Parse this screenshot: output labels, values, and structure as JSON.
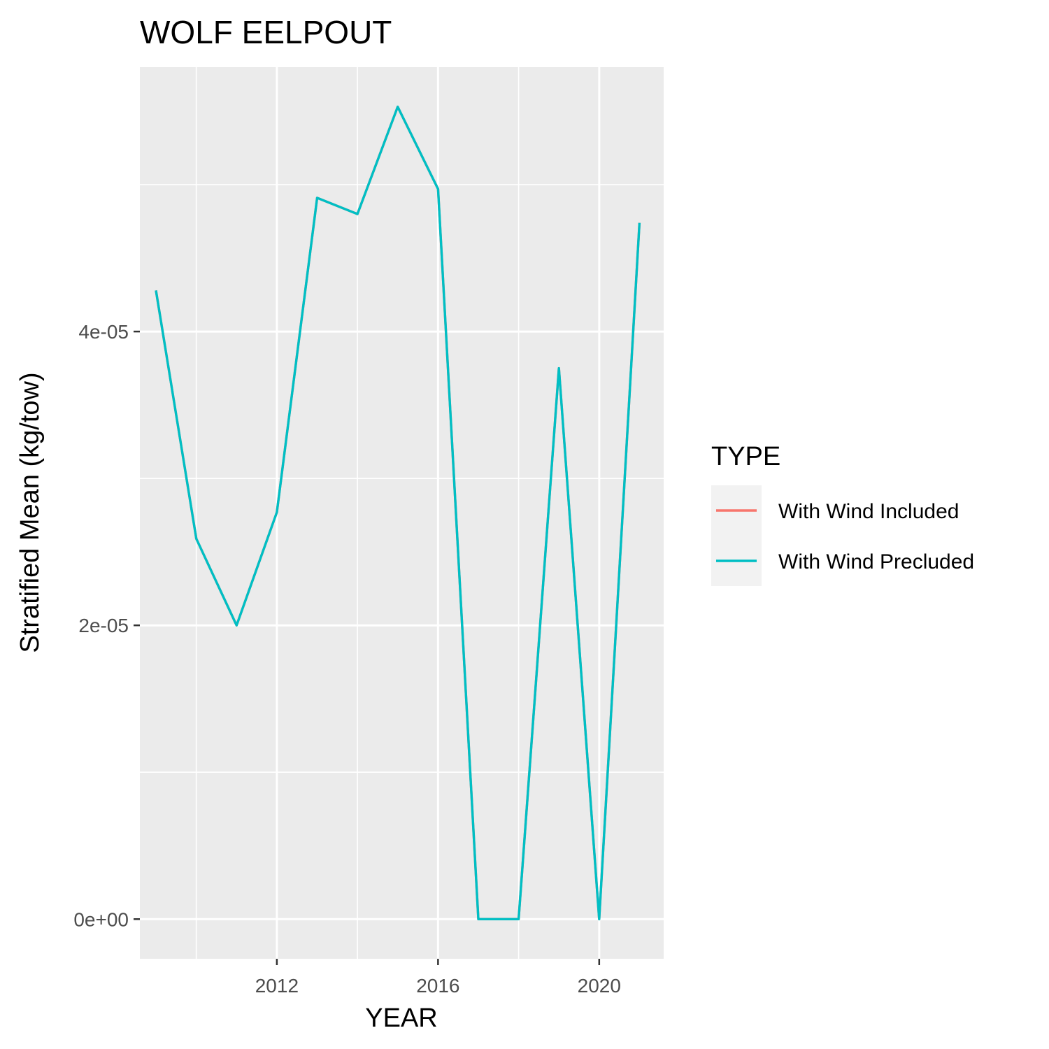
{
  "chart_data": {
    "type": "line",
    "title": "WOLF EELPOUT",
    "xlabel": "YEAR",
    "ylabel": "Stratified Mean (kg/tow)",
    "xlim": [
      2008.6,
      2021.6
    ],
    "ylim": [
      -2.7e-06,
      5.8e-05
    ],
    "x_ticks": [
      {
        "value": 2012,
        "label": "2012"
      },
      {
        "value": 2016,
        "label": "2016"
      },
      {
        "value": 2020,
        "label": "2020"
      }
    ],
    "x_minor_ticks": [
      2010,
      2014,
      2018
    ],
    "y_ticks": [
      {
        "value": 0,
        "label": "0e+00"
      },
      {
        "value": 2e-05,
        "label": "2e-05"
      },
      {
        "value": 4e-05,
        "label": "4e-05"
      }
    ],
    "y_minor_ticks": [
      1e-05,
      3e-05,
      5e-05
    ],
    "legend": {
      "title": "TYPE",
      "position": "right"
    },
    "series": [
      {
        "name": "With Wind Included",
        "color": "#F8766D",
        "x": [
          2009,
          2010,
          2011,
          2012,
          2013,
          2014,
          2015,
          2016,
          2017,
          2018,
          2019,
          2020,
          2021
        ],
        "y": [
          4.28e-05,
          2.59e-05,
          2e-05,
          2.77e-05,
          4.91e-05,
          4.8e-05,
          5.53e-05,
          4.97e-05,
          0.0,
          0.0,
          3.75e-05,
          0.0,
          4.74e-05
        ]
      },
      {
        "name": "With Wind Precluded",
        "color": "#00BFC4",
        "x": [
          2009,
          2010,
          2011,
          2012,
          2013,
          2014,
          2015,
          2016,
          2017,
          2018,
          2019,
          2020,
          2021
        ],
        "y": [
          4.28e-05,
          2.59e-05,
          2e-05,
          2.77e-05,
          4.91e-05,
          4.8e-05,
          5.53e-05,
          4.97e-05,
          0.0,
          0.0,
          3.75e-05,
          0.0,
          4.74e-05
        ]
      }
    ],
    "grid": true,
    "panel_background": "#EBEBEB",
    "grid_color": "#FFFFFF"
  }
}
